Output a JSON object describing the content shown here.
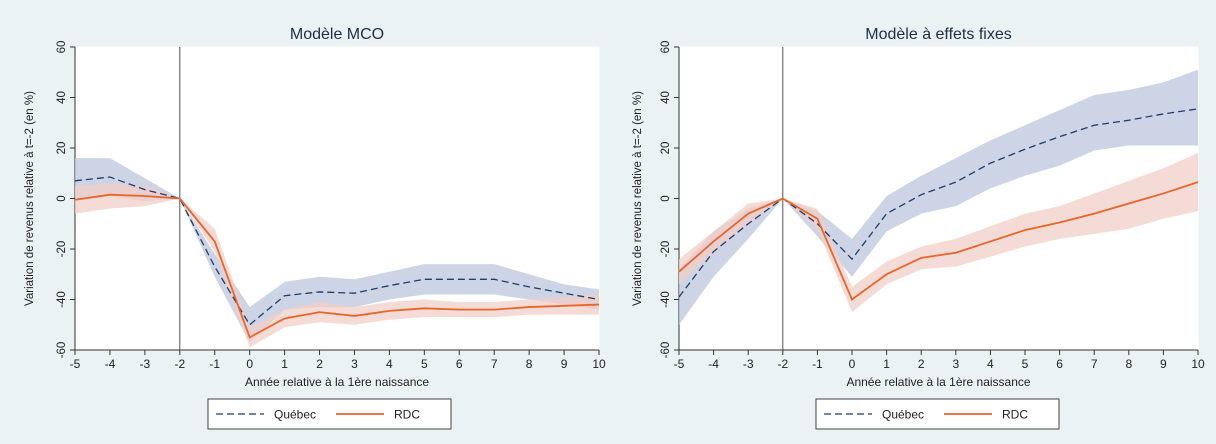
{
  "chart_data": [
    {
      "type": "line",
      "title": "Modèle MCO",
      "xlabel": "Année relative à la 1ère naissance",
      "ylabel": "Variation de revenus relative à t=-2 (en %)",
      "x": [
        -5,
        -4,
        -3,
        -2,
        -1,
        0,
        1,
        2,
        3,
        4,
        5,
        6,
        7,
        8,
        9,
        10
      ],
      "xlim": [
        -5,
        10
      ],
      "ylim": [
        -60,
        60
      ],
      "xticks": [
        "-5",
        "-4",
        "-3",
        "-2",
        "-1",
        "0",
        "1",
        "2",
        "3",
        "4",
        "5",
        "6",
        "7",
        "8",
        "9",
        "10"
      ],
      "yticks": [
        "-60",
        "-40",
        "-20",
        "0",
        "20",
        "40",
        "60"
      ],
      "reference_line_x": -2,
      "series": [
        {
          "name": "Québec",
          "style": "dashed",
          "color": "#1f3d6b",
          "band_color": "#bcc5dc",
          "values": [
            7,
            8.5,
            3.5,
            0,
            -27,
            -50,
            -38.5,
            -37,
            -37.5,
            -34.5,
            -32,
            -32,
            -32,
            -35,
            -37.5,
            -40
          ],
          "ci_lower": [
            -1,
            1,
            -1,
            0,
            -31,
            -57,
            -44,
            -43,
            -43,
            -40,
            -38,
            -38,
            -38,
            -40,
            -42,
            -44
          ],
          "ci_upper": [
            16,
            16,
            8,
            0,
            -22,
            -43,
            -33,
            -31,
            -32,
            -29,
            -26,
            -26,
            -26,
            -30,
            -34,
            -36
          ]
        },
        {
          "name": "RDC",
          "style": "solid",
          "color": "#e9652a",
          "band_color": "#f1cfc7",
          "values": [
            -0.5,
            1.5,
            1,
            0,
            -17,
            -55,
            -47.5,
            -45,
            -46.5,
            -44.5,
            -43.5,
            -44,
            -44,
            -43,
            -42.5,
            -42
          ],
          "ci_lower": [
            -6,
            -4,
            -3,
            0,
            -21,
            -59,
            -51,
            -49,
            -50,
            -48,
            -47,
            -47,
            -47,
            -46,
            -46,
            -46
          ],
          "ci_upper": [
            5,
            6,
            5,
            0,
            -12,
            -51,
            -44,
            -41,
            -43,
            -41,
            -40,
            -41,
            -41,
            -40,
            -39,
            -38
          ]
        }
      ],
      "legend": [
        "Québec",
        "RDC"
      ],
      "legend_position": "bottom",
      "grid": false
    },
    {
      "type": "line",
      "title": "Modèle à effets fixes",
      "xlabel": "Année relative à la 1ère naissance",
      "ylabel": "Variation de revenus relative à t=-2 (en %)",
      "x": [
        -5,
        -4,
        -3,
        -2,
        -1,
        0,
        1,
        2,
        3,
        4,
        5,
        6,
        7,
        8,
        9,
        10
      ],
      "xlim": [
        -5,
        10
      ],
      "ylim": [
        -60,
        60
      ],
      "xticks": [
        "-5",
        "-4",
        "-3",
        "-2",
        "-1",
        "0",
        "1",
        "2",
        "3",
        "4",
        "5",
        "6",
        "7",
        "8",
        "9",
        "10"
      ],
      "yticks": [
        "-60",
        "-40",
        "-20",
        "0",
        "20",
        "40",
        "60"
      ],
      "reference_line_x": -2,
      "series": [
        {
          "name": "Québec",
          "style": "dashed",
          "color": "#1f3d6b",
          "band_color": "#bcc5dc",
          "values": [
            -39,
            -21,
            -10,
            0,
            -10,
            -24,
            -6,
            1.5,
            6.5,
            14,
            19.5,
            24.5,
            29,
            31,
            33.5,
            35.5
          ],
          "ci_lower": [
            -50,
            -31,
            -16,
            0,
            -15,
            -31,
            -13,
            -6,
            -3,
            4,
            9,
            13,
            19,
            21,
            21,
            21
          ],
          "ci_upper": [
            -28,
            -13,
            -4,
            0,
            -5,
            -16,
            1,
            9,
            16,
            23,
            29,
            35,
            41,
            43,
            46,
            51
          ]
        },
        {
          "name": "RDC",
          "style": "solid",
          "color": "#e9652a",
          "band_color": "#f1cfc7",
          "values": [
            -29,
            -17,
            -6,
            0,
            -8,
            -40,
            -30,
            -23.5,
            -21.5,
            -17,
            -12.5,
            -9.5,
            -6,
            -2,
            2,
            6.5
          ],
          "ci_lower": [
            -34,
            -21,
            -10,
            0,
            -12,
            -45,
            -34,
            -28,
            -27,
            -23,
            -19,
            -16,
            -14,
            -12,
            -8,
            -5
          ],
          "ci_upper": [
            -24,
            -13,
            -2,
            0,
            -4,
            -35,
            -25,
            -19,
            -16,
            -11,
            -6,
            -3,
            2,
            7,
            12,
            18
          ]
        }
      ],
      "legend": [
        "Québec",
        "RDC"
      ],
      "legend_position": "bottom",
      "grid": false
    }
  ]
}
